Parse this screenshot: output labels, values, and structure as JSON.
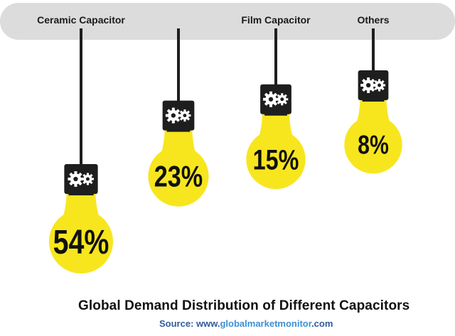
{
  "chart_data": {
    "type": "bar",
    "categories": [
      "Ceramic Capacitor",
      "",
      "Film Capacitor",
      "Others"
    ],
    "values": [
      54,
      23,
      15,
      8
    ],
    "value_labels": [
      "54%",
      "23%",
      "15%",
      "8%"
    ],
    "unit": "%",
    "title": "Global Demand Distribution of Different Capacitors",
    "xlabel": "",
    "ylabel": "",
    "legend": "none",
    "grid": false
  },
  "source": {
    "prefix": "Source: www.",
    "highlight": "globalmarketmonitor",
    "suffix": ".com"
  },
  "colors": {
    "bulb": "#f7e61e",
    "ceiling": "#dcdcdc",
    "socket": "#1e1e1e",
    "gear": "#ffffff"
  },
  "icons": [
    "gear-icon"
  ]
}
